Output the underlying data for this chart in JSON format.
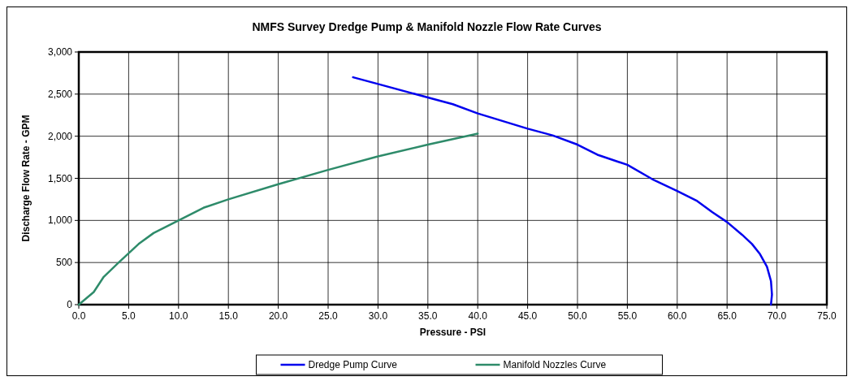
{
  "chart_data": {
    "type": "line",
    "title": "NMFS Survey Dredge Pump & Manifold Nozzle Flow Rate Curves",
    "xlabel": "Pressure - PSI",
    "ylabel": "Discharge Flow Rate - GPM",
    "xlim": [
      0,
      75
    ],
    "xticks": [
      {
        "value": 0,
        "label": "0.0"
      },
      {
        "value": 5,
        "label": "5.0"
      },
      {
        "value": 10,
        "label": "10.0"
      },
      {
        "value": 15,
        "label": "15.0"
      },
      {
        "value": 20,
        "label": "20.0"
      },
      {
        "value": 25,
        "label": "25.0"
      },
      {
        "value": 30,
        "label": "30.0"
      },
      {
        "value": 35,
        "label": "35.0"
      },
      {
        "value": 40,
        "label": "40.0"
      },
      {
        "value": 45,
        "label": "45.0"
      },
      {
        "value": 50,
        "label": "50.0"
      },
      {
        "value": 55,
        "label": "55.0"
      },
      {
        "value": 60,
        "label": "60.0"
      },
      {
        "value": 65,
        "label": "65.0"
      },
      {
        "value": 70,
        "label": "70.0"
      },
      {
        "value": 75,
        "label": "75.0"
      }
    ],
    "ylim": [
      0,
      3000
    ],
    "yticks": [
      0,
      500,
      {
        "value": 1000,
        "label": "1,000"
      },
      {
        "value": 1500,
        "label": "1,500"
      },
      {
        "value": 2000,
        "label": "2,000"
      },
      {
        "value": 2500,
        "label": "2,500"
      },
      {
        "value": 3000,
        "label": "3,000"
      }
    ],
    "grid": true,
    "legend": "bottom",
    "marker": "none",
    "line_style": "solid",
    "series": [
      {
        "name": "Dredge Pump Curve",
        "color": "#0000ee",
        "x": [
          27.5,
          30,
          35,
          37.5,
          40,
          45,
          47.5,
          50,
          52,
          55,
          57.5,
          60,
          62,
          63.5,
          65,
          66.5,
          67.5,
          68.3,
          69,
          69.4,
          69.5,
          69.4
        ],
        "values": [
          2700,
          2620,
          2460,
          2380,
          2270,
          2090,
          2010,
          1900,
          1780,
          1660,
          1490,
          1350,
          1230,
          1100,
          980,
          830,
          720,
          600,
          450,
          280,
          120,
          0
        ]
      },
      {
        "name": "Manifold Nozzles Curve",
        "color": "#2e8b6a",
        "x": [
          0,
          1.5,
          2.5,
          4,
          6,
          7.5,
          10,
          12.5,
          15,
          20,
          25,
          30,
          35,
          40
        ],
        "values": [
          0,
          150,
          330,
          500,
          720,
          850,
          1000,
          1150,
          1250,
          1430,
          1600,
          1760,
          1900,
          2030
        ]
      }
    ]
  }
}
